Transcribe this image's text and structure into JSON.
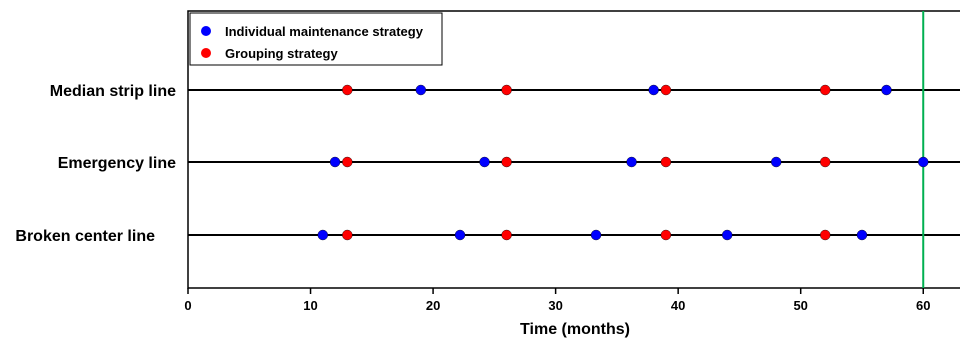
{
  "chart_data": {
    "type": "scatter",
    "title": "",
    "xlabel": "Time (months)",
    "ylabel": "",
    "xlim": [
      0,
      63
    ],
    "xticks": [
      0,
      10,
      20,
      30,
      40,
      50,
      60
    ],
    "rows": [
      "Median strip line",
      "Emergency line",
      "Broken center line"
    ],
    "series": [
      {
        "name": "Individual maintenance strategy",
        "color": "#0000ff",
        "points": {
          "Median strip line": [
            19,
            38,
            57
          ],
          "Emergency line": [
            12,
            24.2,
            36.2,
            48,
            60
          ],
          "Broken center line": [
            11,
            22.2,
            33.3,
            44,
            55
          ]
        }
      },
      {
        "name": "Grouping strategy",
        "color": "#ff0000",
        "points": {
          "Median strip line": [
            13,
            26,
            39,
            52
          ],
          "Emergency line": [
            13,
            26,
            39,
            52
          ],
          "Broken center line": [
            13,
            26,
            39,
            52
          ]
        }
      }
    ],
    "reference_line": {
      "x": 60,
      "color": "#00b050"
    },
    "legend": "top-left",
    "grid": false
  }
}
